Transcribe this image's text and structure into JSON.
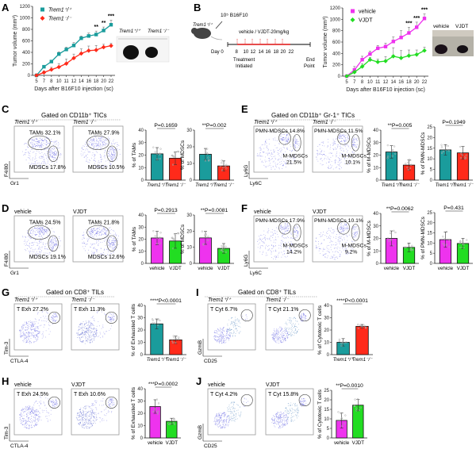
{
  "colors": {
    "trem_wt": "#1a9c9c",
    "trem_ko": "#ff2a1a",
    "vehicle": "#ee33ee",
    "vjdt": "#22dd22",
    "dots": "#3a3adc"
  },
  "panel_labels": [
    "A",
    "B",
    "C",
    "D",
    "E",
    "F",
    "G",
    "H",
    "I",
    "J"
  ],
  "gating": {
    "C": "Gated on CD11b⁺ TICs",
    "E": "Gated on CD11b⁺ Gr-1⁺ TICs",
    "G": "Gated on CD8⁺ TILs",
    "I": "Gated on CD8⁺ TILs"
  },
  "timeline": {
    "injection": "10⁵ B16F10",
    "mouse_label": "Trem1⁺/⁺",
    "treatment": "vehicle / VJDT-20mg/kg",
    "day_label": "Day 0",
    "days": [
      "8",
      "10",
      "12",
      "14",
      "16",
      "18",
      "20",
      "22"
    ],
    "treatment_note_1": "Treatment",
    "treatment_note_2": "Initiated",
    "end_note_1": "End",
    "end_note_2": "Point"
  },
  "photos": {
    "A": {
      "left": "Trem1⁺/⁺",
      "right": "Trem1⁻/⁻"
    },
    "B": {
      "left": "vehicle",
      "right": "VJDT"
    }
  },
  "chart_data": [
    {
      "id": "A",
      "type": "line",
      "title": "",
      "xlabel": "Days after B16F10 injection (sc)",
      "ylabel": "Tumor volume (mm³)",
      "x": [
        "5",
        "7",
        "8",
        "10",
        "11",
        "12",
        "14",
        "16",
        "18",
        "20",
        "22"
      ],
      "ylim": [
        0,
        1200
      ],
      "yticks": [
        0,
        200,
        400,
        600,
        800,
        1000,
        1200
      ],
      "series": [
        {
          "name": "Trem1⁺/⁺",
          "color_key": "trem_wt",
          "marker": "square",
          "values": [
            0,
            150,
            240,
            370,
            450,
            520,
            645,
            685,
            710,
            780,
            880
          ],
          "err": [
            0,
            20,
            25,
            40,
            40,
            50,
            40,
            50,
            60,
            60,
            80
          ]
        },
        {
          "name": "Trem1⁻/⁻",
          "color_key": "trem_ko",
          "marker": "diamond",
          "values": [
            0,
            50,
            100,
            145,
            205,
            300,
            380,
            430,
            440,
            490,
            515
          ],
          "err": [
            0,
            30,
            40,
            60,
            80,
            70,
            80,
            80,
            80,
            50,
            40
          ]
        }
      ],
      "annotations": [
        {
          "x": "18",
          "text": "**"
        },
        {
          "x": "20",
          "text": "**"
        },
        {
          "x": "22",
          "text": "***"
        }
      ],
      "legend": "top-left"
    },
    {
      "id": "B",
      "type": "line",
      "title": "",
      "xlabel": "Days after B16F10 injection (sc)",
      "ylabel": "Tumor volume (mm³)",
      "x": [
        "5",
        "7",
        "8",
        "10",
        "11",
        "12",
        "14",
        "16",
        "18",
        "20",
        "22"
      ],
      "ylim": [
        0,
        1200
      ],
      "yticks": [
        0,
        200,
        400,
        600,
        800,
        1000,
        1200
      ],
      "series": [
        {
          "name": "vehicle",
          "color_key": "vehicle",
          "marker": "square",
          "values": [
            0,
            110,
            290,
            390,
            490,
            520,
            610,
            680,
            760,
            860,
            1015
          ],
          "err": [
            0,
            60,
            60,
            50,
            50,
            60,
            80,
            120,
            100,
            90,
            80
          ]
        },
        {
          "name": "VJDT",
          "color_key": "vjdt",
          "marker": "diamond",
          "values": [
            0,
            70,
            170,
            290,
            250,
            265,
            350,
            320,
            360,
            380,
            450
          ],
          "err": [
            0,
            30,
            50,
            40,
            50,
            80,
            150,
            130,
            100,
            80,
            60
          ]
        }
      ],
      "annotations": [
        {
          "x": "18",
          "text": "***"
        },
        {
          "x": "20",
          "text": "***"
        },
        {
          "x": "22",
          "text": "***"
        }
      ],
      "legend": "top-left"
    },
    {
      "id": "C",
      "type": "scatter",
      "kind": "flow",
      "xlabel": "Gr1",
      "ylabel": "F4/80",
      "plots": [
        {
          "title": "Trem1⁺/⁺",
          "gates": [
            {
              "label": "TAMs 32.1%"
            },
            {
              "label": "MDSCs 17.8%"
            }
          ]
        },
        {
          "title": "Trem1⁻/⁻",
          "gates": [
            {
              "label": "TAMs 27.9%"
            },
            {
              "label": "MDSCs 10.5%"
            }
          ]
        }
      ]
    },
    {
      "id": "C-bar1",
      "type": "bar",
      "ylabel": "% of TAMs",
      "ylim": [
        0,
        40
      ],
      "yticks": [
        0,
        10,
        20,
        30,
        40
      ],
      "pvalue": "P=0.1659",
      "categories": [
        "Trem1⁺/⁺",
        "Trem1⁻/⁻"
      ],
      "values": [
        21,
        17.5
      ],
      "err": [
        5,
        5
      ],
      "color_keys": [
        "trem_wt",
        "trem_ko"
      ]
    },
    {
      "id": "C-bar2",
      "type": "bar",
      "ylabel": "% of MDSCs",
      "ylim": [
        0,
        30
      ],
      "yticks": [
        0,
        10,
        20,
        30
      ],
      "pvalue": "**P=0.002",
      "categories": [
        "Trem1⁺/⁺",
        "Trem1⁻/⁻"
      ],
      "values": [
        15.5,
        8.5
      ],
      "err": [
        3.5,
        3
      ],
      "color_keys": [
        "trem_wt",
        "trem_ko"
      ]
    },
    {
      "id": "D",
      "type": "scatter",
      "kind": "flow",
      "xlabel": "Gr1",
      "ylabel": "F4/80",
      "plots": [
        {
          "title": "vehicle",
          "gates": [
            {
              "label": "TAMs 24.5%"
            },
            {
              "label": "MDSCs 19.1%"
            }
          ]
        },
        {
          "title": "VJDT",
          "gates": [
            {
              "label": "TAMs 21.8%"
            },
            {
              "label": "MDSCs 12.6%"
            }
          ]
        }
      ]
    },
    {
      "id": "D-bar1",
      "type": "bar",
      "ylabel": "% of TAMs",
      "ylim": [
        0,
        40
      ],
      "yticks": [
        0,
        10,
        20,
        30,
        40
      ],
      "pvalue": "P=0.2913",
      "categories": [
        "vehicle",
        "VJDT"
      ],
      "values": [
        21,
        18.5
      ],
      "err": [
        5.5,
        6
      ],
      "color_keys": [
        "vehicle",
        "vjdt"
      ]
    },
    {
      "id": "D-bar2",
      "type": "bar",
      "ylabel": "% of MDSCs",
      "ylim": [
        0,
        30
      ],
      "yticks": [
        0,
        10,
        20,
        30
      ],
      "pvalue": "**P=0.0081",
      "categories": [
        "vehicle",
        "VJDT"
      ],
      "values": [
        15.8,
        9.3
      ],
      "err": [
        4,
        3
      ],
      "color_keys": [
        "vehicle",
        "vjdt"
      ]
    },
    {
      "id": "E",
      "type": "scatter",
      "kind": "flow",
      "xlabel": "Ly6C",
      "ylabel": "Ly6G",
      "plots": [
        {
          "title": "Trem1⁺/⁺",
          "gates": [
            {
              "label": "PMN-MDSCs 14.8%"
            },
            {
              "label": "M-MDSCs 21.5%"
            }
          ]
        },
        {
          "title": "Trem1⁻/⁻",
          "gates": [
            {
              "label": "PMN-MDSCs 11.5%"
            },
            {
              "label": "M-MDSCs 10.1%"
            }
          ]
        }
      ]
    },
    {
      "id": "E-bar1",
      "type": "bar",
      "ylabel": "% of M-MDSCs",
      "ylim": [
        0,
        40
      ],
      "yticks": [
        0,
        10,
        20,
        30,
        40
      ],
      "pvalue": "**P=0.005",
      "categories": [
        "Trem1⁺/⁺",
        "Trem1⁻/⁻"
      ],
      "values": [
        22.5,
        12
      ],
      "err": [
        5,
        4
      ],
      "color_keys": [
        "trem_wt",
        "trem_ko"
      ]
    },
    {
      "id": "E-bar2",
      "type": "bar",
      "ylabel": "% of PMN-MDSCs",
      "ylim": [
        0,
        25
      ],
      "yticks": [
        0,
        5,
        10,
        15,
        20,
        25
      ],
      "pvalue": "P=0.1949",
      "categories": [
        "Trem1⁺/⁺",
        "Trem1⁻/⁻"
      ],
      "values": [
        14.2,
        12.8
      ],
      "err": [
        2.5,
        3
      ],
      "color_keys": [
        "trem_wt",
        "trem_ko"
      ]
    },
    {
      "id": "F",
      "type": "scatter",
      "kind": "flow",
      "xlabel": "Ly6C",
      "ylabel": "Ly6G",
      "plots": [
        {
          "title": "vehicle",
          "gates": [
            {
              "label": "PMN-MDSCs 17.9%"
            },
            {
              "label": "M-MDSCs 14.2%"
            }
          ]
        },
        {
          "title": "VJDT",
          "gates": [
            {
              "label": "PMN-MDSCs 10.1%"
            },
            {
              "label": "M-MDSCs 9.2%"
            }
          ]
        }
      ]
    },
    {
      "id": "F-bar1",
      "type": "bar",
      "ylabel": "% of M-MDSCs",
      "ylim": [
        0,
        40
      ],
      "yticks": [
        0,
        10,
        20,
        30,
        40
      ],
      "pvalue": "**P=0.0062",
      "categories": [
        "vehicle",
        "VJDT"
      ],
      "values": [
        20,
        12.8
      ],
      "err": [
        6,
        3.5
      ],
      "color_keys": [
        "vehicle",
        "vjdt"
      ]
    },
    {
      "id": "F-bar2",
      "type": "bar",
      "ylabel": "% of PMN-MDSCs",
      "ylim": [
        0,
        25
      ],
      "yticks": [
        0,
        5,
        10,
        15,
        20,
        25
      ],
      "pvalue": "P=0.431",
      "categories": [
        "vehicle",
        "VJDT"
      ],
      "values": [
        11.7,
        9.8
      ],
      "err": [
        3.8,
        2.5
      ],
      "color_keys": [
        "vehicle",
        "vjdt"
      ]
    },
    {
      "id": "G",
      "type": "scatter",
      "kind": "flow",
      "xlabel": "CTLA-4",
      "ylabel": "Tim-3",
      "plots": [
        {
          "title": "Trem1⁺/⁺",
          "gates": [
            {
              "label": "T Exh 27.2%"
            }
          ]
        },
        {
          "title": "Trem1⁻/⁻",
          "gates": [
            {
              "label": "T Exh 11.3%"
            }
          ]
        }
      ]
    },
    {
      "id": "G-bar",
      "type": "bar",
      "ylabel": "% of Exhausted T cells",
      "ylim": [
        0,
        40
      ],
      "yticks": [
        0,
        10,
        20,
        30,
        40
      ],
      "pvalue": "****P<0.0001",
      "categories": [
        "Trem1⁺/⁺",
        "Trem1⁻/⁻"
      ],
      "values": [
        25,
        12
      ],
      "err": [
        4,
        3
      ],
      "color_keys": [
        "trem_wt",
        "trem_ko"
      ]
    },
    {
      "id": "H",
      "type": "scatter",
      "kind": "flow",
      "xlabel": "CTLA-4",
      "ylabel": "Tim-3",
      "plots": [
        {
          "title": "vehicle",
          "gates": [
            {
              "label": "T Exh 24.5%"
            }
          ]
        },
        {
          "title": "VJDT",
          "gates": [
            {
              "label": "T Exh 10.6%"
            }
          ]
        }
      ]
    },
    {
      "id": "H-bar",
      "type": "bar",
      "ylabel": "% of Exhausted T cells",
      "ylim": [
        0,
        40
      ],
      "yticks": [
        0,
        10,
        20,
        30,
        40
      ],
      "pvalue": "***P=0.0002",
      "categories": [
        "vehicle",
        "VJDT"
      ],
      "values": [
        25.5,
        13.5
      ],
      "err": [
        5.5,
        2.5
      ],
      "color_keys": [
        "vehicle",
        "vjdt"
      ]
    },
    {
      "id": "I",
      "type": "scatter",
      "kind": "flow",
      "xlabel": "CD25",
      "ylabel": "GzmB",
      "plots": [
        {
          "title": "Trem1⁺/⁺",
          "gates": [
            {
              "label": "T Cyt 6.7%"
            }
          ]
        },
        {
          "title": "Trem1⁻/⁻",
          "gates": [
            {
              "label": "T Cyt 21.1%"
            }
          ]
        }
      ]
    },
    {
      "id": "I-bar",
      "type": "bar",
      "ylabel": "% of Cytotoxic T cells",
      "ylim": [
        0,
        40
      ],
      "yticks": [
        0,
        10,
        20,
        30,
        40
      ],
      "pvalue": "****P<0.0001",
      "categories": [
        "Trem1⁺/⁺",
        "Trem1⁻/⁻"
      ],
      "values": [
        10,
        23
      ],
      "err": [
        3,
        1.5
      ],
      "color_keys": [
        "trem_wt",
        "trem_ko"
      ]
    },
    {
      "id": "J",
      "type": "scatter",
      "kind": "flow",
      "xlabel": "CD25",
      "ylabel": "GzmB",
      "plots": [
        {
          "title": "vehicle",
          "gates": [
            {
              "label": "T Cyt 4.2%"
            }
          ]
        },
        {
          "title": "VJDT",
          "gates": [
            {
              "label": "T Cyt 15.8%"
            }
          ]
        }
      ]
    },
    {
      "id": "J-bar",
      "type": "bar",
      "ylabel": "% of Cytotoxic T cells",
      "ylim": [
        0,
        25
      ],
      "yticks": [
        0,
        5,
        10,
        15,
        20,
        25
      ],
      "pvalue": "**P=0.0010",
      "categories": [
        "vehicle",
        "VJDT"
      ],
      "values": [
        9.2,
        17.2
      ],
      "err": [
        4,
        3
      ],
      "color_keys": [
        "vehicle",
        "vjdt"
      ]
    }
  ]
}
